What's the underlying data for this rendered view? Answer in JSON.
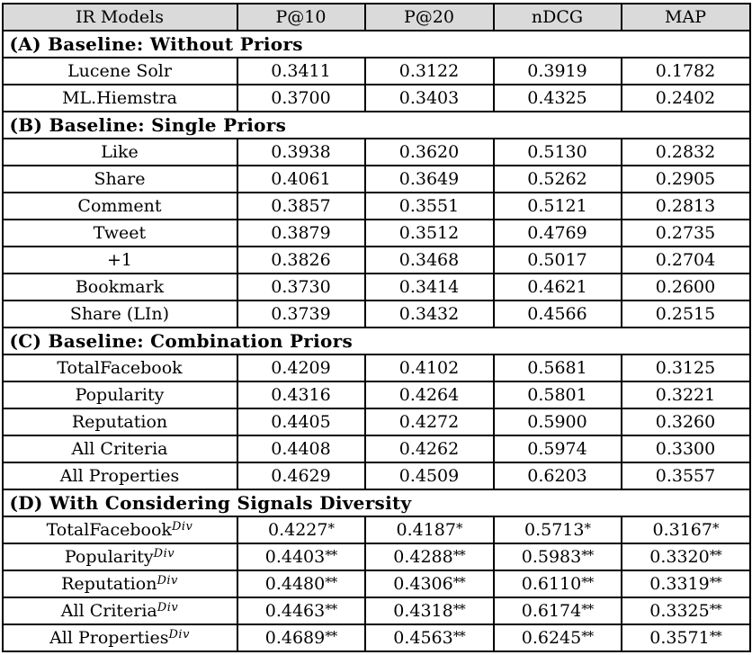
{
  "table": {
    "headers": [
      "IR Models",
      "P@10",
      "P@20",
      "nDCG",
      "MAP"
    ],
    "header_bg": "#dadada",
    "border_color": "#000000",
    "sections": [
      {
        "title": "(A) Baseline: Without Priors",
        "rows": [
          {
            "model": "Lucene Solr",
            "values": [
              "0.3411",
              "0.3122",
              "0.3919",
              "0.1782"
            ]
          },
          {
            "model": "ML.Hiemstra",
            "values": [
              "0.3700",
              "0.3403",
              "0.4325",
              "0.2402"
            ]
          }
        ]
      },
      {
        "title": "(B) Baseline: Single Priors",
        "rows": [
          {
            "model": "Like",
            "values": [
              "0.3938",
              "0.3620",
              "0.5130",
              "0.2832"
            ]
          },
          {
            "model": "Share",
            "values": [
              "0.4061",
              "0.3649",
              "0.5262",
              "0.2905"
            ]
          },
          {
            "model": "Comment",
            "values": [
              "0.3857",
              "0.3551",
              "0.5121",
              "0.2813"
            ]
          },
          {
            "model": "Tweet",
            "values": [
              "0.3879",
              "0.3512",
              "0.4769",
              "0.2735"
            ]
          },
          {
            "model": "+1",
            "values": [
              "0.3826",
              "0.3468",
              "0.5017",
              "0.2704"
            ]
          },
          {
            "model": "Bookmark",
            "values": [
              "0.3730",
              "0.3414",
              "0.4621",
              "0.2600"
            ]
          },
          {
            "model": "Share (LIn)",
            "values": [
              "0.3739",
              "0.3432",
              "0.4566",
              "0.2515"
            ]
          }
        ]
      },
      {
        "title": "(C) Baseline: Combination Priors",
        "rows": [
          {
            "model": "TotalFacebook",
            "values": [
              "0.4209",
              "0.4102",
              "0.5681",
              "0.3125"
            ]
          },
          {
            "model": "Popularity",
            "values": [
              "0.4316",
              "0.4264",
              "0.5801",
              "0.3221"
            ]
          },
          {
            "model": "Reputation",
            "values": [
              "0.4405",
              "0.4272",
              "0.5900",
              "0.3260"
            ]
          },
          {
            "model": "All Criteria",
            "values": [
              "0.4408",
              "0.4262",
              "0.5974",
              "0.3300"
            ]
          },
          {
            "model": "All Properties",
            "values": [
              "0.4629",
              "0.4509",
              "0.6203",
              "0.3557"
            ]
          }
        ]
      },
      {
        "title": "(D) With Considering Signals Diversity",
        "rows": [
          {
            "model": "TotalFacebook",
            "model_sup": "Div",
            "stars": "*",
            "values": [
              "0.4227",
              "0.4187",
              "0.5713",
              "0.3167"
            ]
          },
          {
            "model": "Popularity",
            "model_sup": "Div",
            "stars": "**",
            "values": [
              "0.4403",
              "0.4288",
              "0.5983",
              "0.3320"
            ]
          },
          {
            "model": "Reputation",
            "model_sup": "Div",
            "stars": "**",
            "values": [
              "0.4480",
              "0.4306",
              "0.6110",
              "0.3319"
            ]
          },
          {
            "model": "All Criteria",
            "model_sup": "Div",
            "stars": "**",
            "values": [
              "0.4463",
              "0.4318",
              "0.6174",
              "0.3325"
            ]
          },
          {
            "model": "All Properties",
            "model_sup": "Div",
            "stars": "**",
            "values": [
              "0.4689",
              "0.4563",
              "0.6245",
              "0.3571"
            ]
          }
        ]
      }
    ]
  }
}
